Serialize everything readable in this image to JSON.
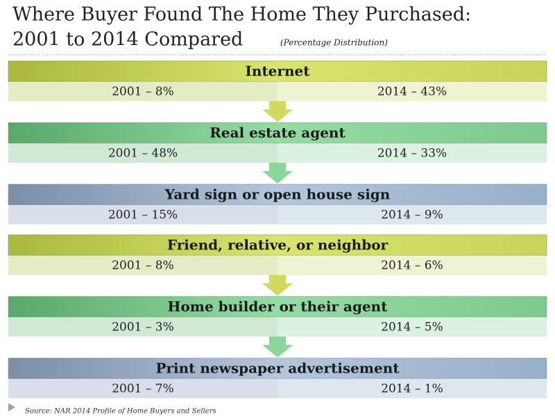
{
  "title": {
    "line1": "Where Buyer Found The Home They Purchased:",
    "line2": "2001 to 2014 Compared",
    "note": "(Percentage Distribution)"
  },
  "blocks": [
    {
      "label": "Internet",
      "left": "2001 – 8%",
      "right": "2014 – 43%"
    },
    {
      "label": "Real estate agent",
      "left": "2001 – 48%",
      "right": "2014 – 33%"
    },
    {
      "label": "Yard sign or open house sign",
      "left": "2001 – 15%",
      "right": "2014 – 9%"
    },
    {
      "label": "Friend, relative, or neighbor",
      "left": "2001 – 8%",
      "right": "2014 – 6%"
    },
    {
      "label": "Home builder or their agent",
      "left": "2001 – 3%",
      "right": "2014 – 5%"
    },
    {
      "label": "Print newspaper advertisement",
      "left": "2001 – 7%",
      "right": "2014 – 1%"
    }
  ],
  "source": "Source: NAR 2014 Profile of Home Buyers and Sellers"
}
